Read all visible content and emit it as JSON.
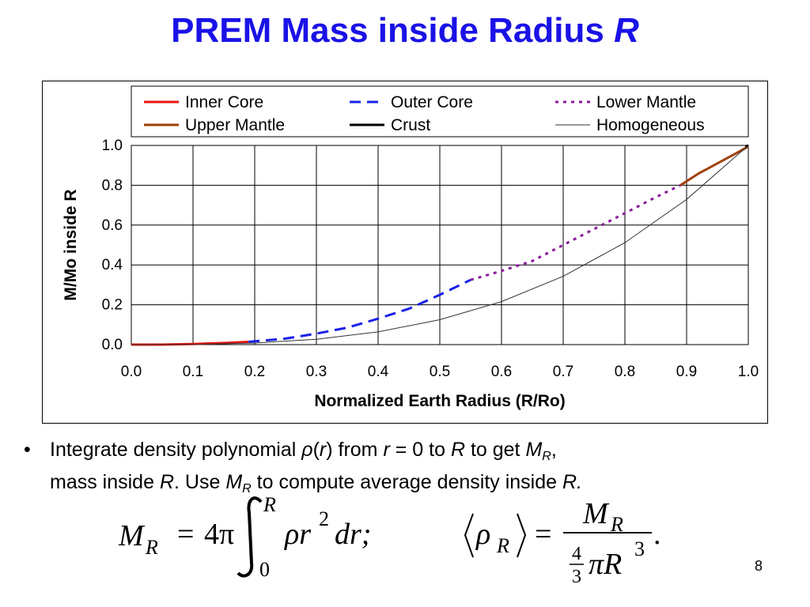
{
  "slide": {
    "title_main": "PREM Mass inside Radius ",
    "title_var": "R",
    "page_number": "8"
  },
  "bullet": {
    "line1_a": "Integrate density polynomial ",
    "line1_rho": "ρ",
    "line1_paren_open": "(",
    "line1_r": "r",
    "line1_paren_close": ")",
    "line1_b": " from ",
    "line1_r2": "r",
    "line1_c": " = 0 to ",
    "line1_R": "R",
    "line1_d": " to get ",
    "line1_M": "M",
    "line1_Msub": "R",
    "line1_e": ",",
    "line2_a": "mass inside ",
    "line2_R": "R",
    "line2_b": ". Use ",
    "line2_M": "M",
    "line2_Msub": "R",
    "line2_c": " to compute average density inside ",
    "line2_R2": "R.",
    "eq1_lhs_M": "M",
    "eq1_lhs_sub": "R",
    "eq1_eq": "=",
    "eq1_coef": "4π",
    "eq1_upper": "R",
    "eq1_lower": "0",
    "eq1_body": "ρr",
    "eq1_exp": "2",
    "eq1_tail": "dr;",
    "eq2_rho": "ρ",
    "eq2_sub": "R",
    "eq2_eq": "=",
    "eq2_num_M": "M",
    "eq2_num_sub": "R",
    "eq2_frac_num": "4",
    "eq2_frac_den": "3",
    "eq2_den_body": "πR",
    "eq2_den_exp": "3",
    "eq2_period": "."
  },
  "chart_data": {
    "type": "line",
    "xlabel": "Normalized Earth Radius (R/Ro)",
    "ylabel": "M/Mo inside R",
    "xlim": [
      0.0,
      1.0
    ],
    "ylim": [
      0.0,
      1.0
    ],
    "xticks": [
      "0.0",
      "0.1",
      "0.2",
      "0.3",
      "0.4",
      "0.5",
      "0.6",
      "0.7",
      "0.8",
      "0.9",
      "1.0"
    ],
    "yticks": [
      "0.0",
      "0.2",
      "0.4",
      "0.6",
      "0.8",
      "1.0"
    ],
    "grid": true,
    "legend_position": "top",
    "series": [
      {
        "name": "Inner Core",
        "color": "#e8140c",
        "dash": "solid",
        "x": [
          0.0,
          0.05,
          0.1,
          0.15,
          0.19
        ],
        "y": [
          0.0,
          0.0,
          0.003,
          0.008,
          0.014
        ]
      },
      {
        "name": "Outer Core",
        "color": "#1a22e6",
        "dash": "dashed",
        "x": [
          0.19,
          0.25,
          0.3,
          0.35,
          0.4,
          0.45,
          0.5,
          0.55
        ],
        "y": [
          0.014,
          0.03,
          0.055,
          0.085,
          0.13,
          0.18,
          0.25,
          0.325
        ]
      },
      {
        "name": "Lower Mantle",
        "color": "#8a1a9a",
        "dash": "dotted",
        "x": [
          0.55,
          0.6,
          0.65,
          0.7,
          0.75,
          0.8,
          0.85,
          0.89
        ],
        "y": [
          0.325,
          0.37,
          0.42,
          0.5,
          0.58,
          0.66,
          0.74,
          0.8
        ]
      },
      {
        "name": "Upper Mantle",
        "color": "#a0400a",
        "dash": "solid",
        "x": [
          0.89,
          0.92,
          0.95,
          0.98,
          1.0
        ],
        "y": [
          0.8,
          0.86,
          0.91,
          0.96,
          0.995
        ]
      },
      {
        "name": "Crust",
        "color": "#000000",
        "dash": "solid",
        "x": [
          0.995,
          1.0
        ],
        "y": [
          0.995,
          1.0
        ]
      },
      {
        "name": "Homogeneous",
        "color": "#333333",
        "dash": "thin",
        "x": [
          0.0,
          0.1,
          0.2,
          0.3,
          0.4,
          0.5,
          0.6,
          0.7,
          0.8,
          0.9,
          1.0
        ],
        "y": [
          0.0,
          0.001,
          0.008,
          0.027,
          0.064,
          0.125,
          0.216,
          0.343,
          0.512,
          0.729,
          1.0
        ]
      }
    ]
  }
}
